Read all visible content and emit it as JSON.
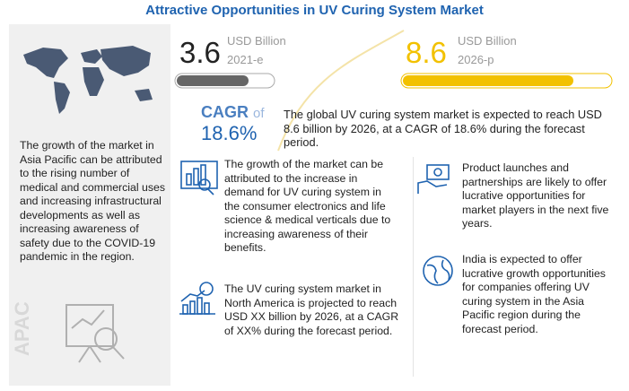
{
  "title": "Attractive Opportunities in UV Curing System Market",
  "sidebar": {
    "text": "The growth of the market in Asia Pacific can be attributed to the rising number of medical and commercial uses and increasing infrastructural developments as well as increasing awareness of safety due to the COVID-19 pandemic in the region.",
    "region": "APAC"
  },
  "stats": [
    {
      "value": "3.6",
      "unit": "USD Billion",
      "year": "2021-e"
    },
    {
      "value": "8.6",
      "unit": "USD Billion",
      "year": "2026-p"
    }
  ],
  "cagr": {
    "label": "CAGR",
    "of": "of",
    "value": "18.6%",
    "text": "The global UV curing system market is expected to reach USD 8.6 billion by 2026, at a CAGR of 18.6% during the forecast period."
  },
  "insights": [
    {
      "text": "The growth of the market can be attributed to the increase in demand for UV curing system in the consumer electronics and life science & medical verticals due to increasing awareness of their benefits."
    },
    {
      "text": "Product launches and partnerships are likely to offer lucrative opportunities for market players in the next five years."
    },
    {
      "text": "The UV curing system market in North America is projected to reach USD XX billion  by 2026, at a CAGR of XX% during the forecast period."
    },
    {
      "text": "India is expected to offer lucrative growth opportunities for companies offering UV curing system in the Asia Pacific region during the forecast period."
    }
  ]
}
